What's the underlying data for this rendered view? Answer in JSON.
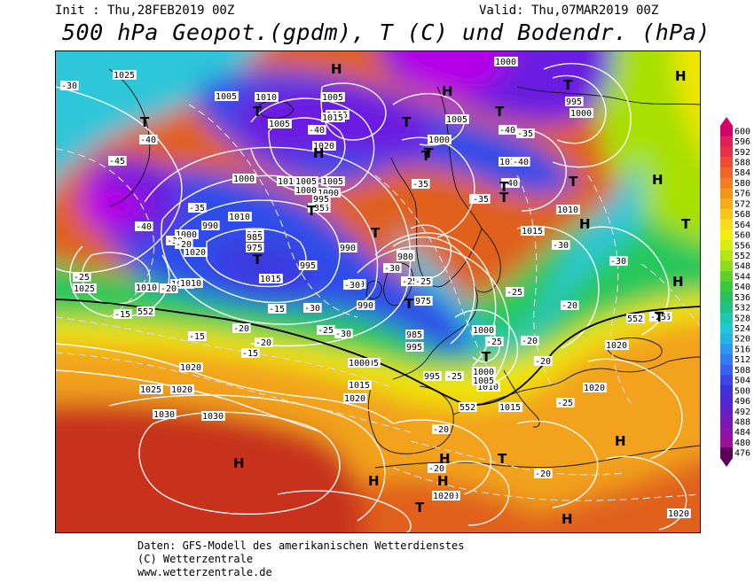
{
  "header": {
    "init": "Init : Thu,28FEB2019 00Z",
    "valid": "Valid: Thu,07MAR2019 00Z",
    "title": "500 hPa Geopot.(gpdm), T (C) und Bodendr. (hPa)"
  },
  "footer": {
    "line1": "Daten: GFS-Modell des amerikanischen Wetterdienstes",
    "line2": "(C) Wetterzentrale",
    "line3": "www.wetterzentrale.de"
  },
  "colors": {
    "magenta": "#b400e6",
    "violet": "#6a1ee0",
    "blue": "#2d4ee8",
    "cyan": "#2ec6d9",
    "green": "#28c85a",
    "yellowgreen": "#a8e000",
    "yellow": "#f0e600",
    "orange": "#f2a21e",
    "darkorange": "#e0601a",
    "red": "#c8321e"
  },
  "scale_labels": [
    "600",
    "596",
    "592",
    "588",
    "584",
    "580",
    "576",
    "572",
    "568",
    "564",
    "560",
    "556",
    "552",
    "548",
    "544",
    "540",
    "536",
    "532",
    "528",
    "524",
    "520",
    "516",
    "512",
    "508",
    "504",
    "500",
    "496",
    "492",
    "488",
    "484",
    "480",
    "476"
  ],
  "pressure_labels": [
    "1025",
    "1010",
    "1005",
    "1010",
    "1015",
    "1020",
    "1010",
    "1005",
    "1000",
    "1010",
    "1005",
    "1000",
    "1000",
    "995",
    "1000",
    "1005",
    "1000",
    "1010",
    "1015",
    "1020",
    "995",
    "1000",
    "1005",
    "1010",
    "1015",
    "1010",
    "990",
    "985",
    "980",
    "975",
    "980",
    "985",
    "990",
    "995",
    "1000",
    "1005",
    "1010",
    "1015",
    "1005",
    "1010",
    "1000",
    "995",
    "1010",
    "1020",
    "1025",
    "1030",
    "1020",
    "1015",
    "1025",
    "1020",
    "1030",
    "1020",
    "1020",
    "1015",
    "1010",
    "1005",
    "1000",
    "995",
    "990",
    "985",
    "975",
    "1000",
    "1015",
    "1020",
    "1020",
    "1020"
  ],
  "temp_labels": [
    "-30",
    "-35",
    "-40",
    "-45",
    "-40",
    "-40",
    "-35",
    "-35",
    "-35",
    "-40",
    "-35",
    "-35",
    "-40",
    "-40",
    "-30",
    "-35",
    "-30",
    "-30",
    "-25",
    "-25",
    "-30",
    "-30",
    "-20",
    "-25",
    "-20",
    "-15",
    "-15",
    "-15",
    "-20",
    "-20",
    "-25",
    "-30",
    "-25",
    "-30",
    "-20",
    "-20",
    "-25",
    "-30",
    "-25",
    "-20",
    "-25",
    "-20",
    "-20",
    "-15",
    "-20",
    "-25",
    "-25"
  ],
  "height_labels": [
    "552",
    "552",
    "552"
  ],
  "highs": [
    "H",
    "H",
    "H",
    "H",
    "H",
    "H",
    "H",
    "H",
    "H",
    "H",
    "H",
    "H",
    "H"
  ],
  "lows": [
    "T",
    "T",
    "T",
    "T",
    "T",
    "T",
    "T",
    "T",
    "T",
    "T",
    "T",
    "T",
    "T",
    "T",
    "T",
    "T",
    "T",
    "T",
    "T"
  ]
}
